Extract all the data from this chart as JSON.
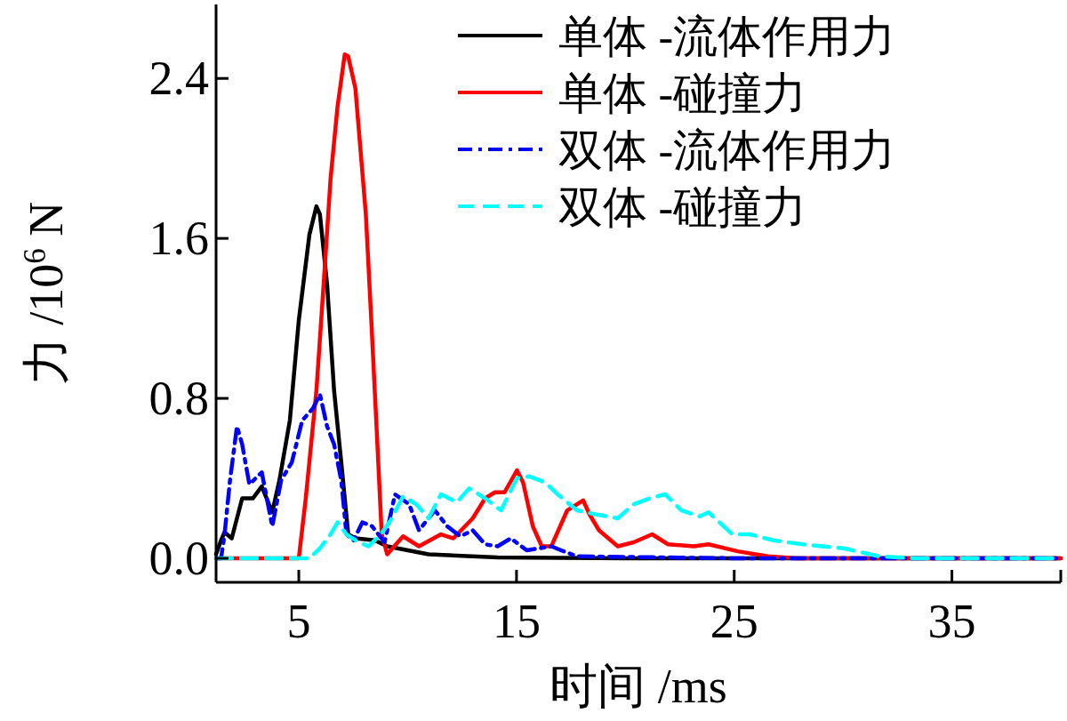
{
  "chart_data": {
    "type": "line",
    "xlabel": "时间 /ms",
    "ylabel": "力 /10$^{6}$ N",
    "xlim": [
      1.2,
      40
    ],
    "ylim": [
      -0.12,
      2.77
    ],
    "xticks": [
      5,
      15,
      25,
      35
    ],
    "yticks": [
      {
        "value": 0,
        "label": "0.0"
      },
      0.8,
      1.6,
      2.4
    ],
    "legend": "top right",
    "series": [
      {
        "name": "单体 -流体作用力",
        "color": "#000000",
        "line_style": "solid",
        "x": [
          1.2,
          1.43,
          1.59,
          1.92,
          2.4,
          2.89,
          3.3,
          3.78,
          4.11,
          4.59,
          5.0,
          5.49,
          5.81,
          5.97,
          6.3,
          6.62,
          6.95,
          7.27,
          7.6,
          8.49,
          9.06,
          10.96,
          14.13,
          20,
          30,
          40
        ],
        "values": [
          0.02,
          0.09,
          0.13,
          0.1,
          0.3,
          0.3,
          0.36,
          0.23,
          0.39,
          0.69,
          1.19,
          1.62,
          1.76,
          1.72,
          1.37,
          0.84,
          0.48,
          0.12,
          0.1,
          0.09,
          0.06,
          0.02,
          0.005,
          0.0,
          0.0,
          0.0
        ]
      },
      {
        "name": "单体 -碰撞力",
        "color": "#ff0000",
        "line_style": "solid",
        "x": [
          1.2,
          5.0,
          5.32,
          5.81,
          6.14,
          6.46,
          6.78,
          7.11,
          7.27,
          7.6,
          8.08,
          8.33,
          8.57,
          8.81,
          9.06,
          9.79,
          10.52,
          11.53,
          12.1,
          12.99,
          13.56,
          14.01,
          14.45,
          15.02,
          15.3,
          15.75,
          16.16,
          16.6,
          17.33,
          18.06,
          18.35,
          18.79,
          19.65,
          20.38,
          21.23,
          21.96,
          23.13,
          23.82,
          25.16,
          26.54,
          27.88,
          40
        ],
        "values": [
          0,
          0,
          0.3,
          0.84,
          1.37,
          1.9,
          2.26,
          2.52,
          2.51,
          2.35,
          1.72,
          1.19,
          0.66,
          0.12,
          0.02,
          0.11,
          0.06,
          0.12,
          0.1,
          0.2,
          0.3,
          0.33,
          0.33,
          0.44,
          0.38,
          0.16,
          0.06,
          0.06,
          0.24,
          0.29,
          0.22,
          0.14,
          0.06,
          0.08,
          0.12,
          0.07,
          0.06,
          0.07,
          0.035,
          0.01,
          0.0,
          0.0
        ]
      },
      {
        "name": "双体 -流体作用力",
        "color": "#0000ff",
        "line_style": "dashdot",
        "x": [
          1.2,
          1.43,
          1.59,
          1.84,
          2.16,
          2.4,
          2.73,
          3.3,
          3.78,
          4.19,
          4.68,
          5.16,
          5.65,
          5.97,
          6.3,
          6.62,
          6.95,
          7.19,
          7.52,
          7.92,
          8.37,
          8.94,
          9.42,
          10.07,
          10.52,
          11.25,
          11.82,
          12.42,
          12.99,
          13.56,
          14.13,
          14.74,
          15.47,
          16.6,
          17.05,
          17.78,
          25,
          40
        ],
        "values": [
          0,
          0,
          0.12,
          0.39,
          0.66,
          0.57,
          0.37,
          0.43,
          0.16,
          0.39,
          0.48,
          0.69,
          0.75,
          0.82,
          0.66,
          0.57,
          0.39,
          0.12,
          0.09,
          0.18,
          0.16,
          0.08,
          0.32,
          0.27,
          0.14,
          0.24,
          0.16,
          0.11,
          0.14,
          0.07,
          0.06,
          0.1,
          0.04,
          0.06,
          0.04,
          0.01,
          0.0,
          0.0
        ]
      },
      {
        "name": "双体 -碰撞力",
        "color": "#00ffff",
        "line_style": "dashed",
        "x": [
          1.2,
          5.49,
          5.97,
          6.46,
          6.78,
          7.19,
          7.76,
          8.2,
          8.77,
          9.22,
          9.79,
          10.4,
          10.96,
          11.53,
          12.26,
          12.83,
          13.56,
          14.29,
          15.02,
          15.59,
          16.32,
          16.89,
          17.78,
          18.63,
          19.65,
          20.38,
          21.11,
          21.84,
          22.57,
          23.42,
          23.82,
          24.92,
          25.73,
          26.79,
          28.16,
          30.03,
          31.65,
          33.28,
          40
        ],
        "values": [
          0,
          0,
          0.05,
          0.12,
          0.18,
          0.12,
          0.08,
          0.06,
          0.12,
          0.19,
          0.31,
          0.27,
          0.2,
          0.32,
          0.28,
          0.35,
          0.3,
          0.24,
          0.4,
          0.41,
          0.38,
          0.32,
          0.24,
          0.22,
          0.2,
          0.27,
          0.3,
          0.32,
          0.24,
          0.21,
          0.23,
          0.12,
          0.12,
          0.09,
          0.07,
          0.05,
          0.01,
          0.0,
          0.0
        ]
      }
    ]
  }
}
